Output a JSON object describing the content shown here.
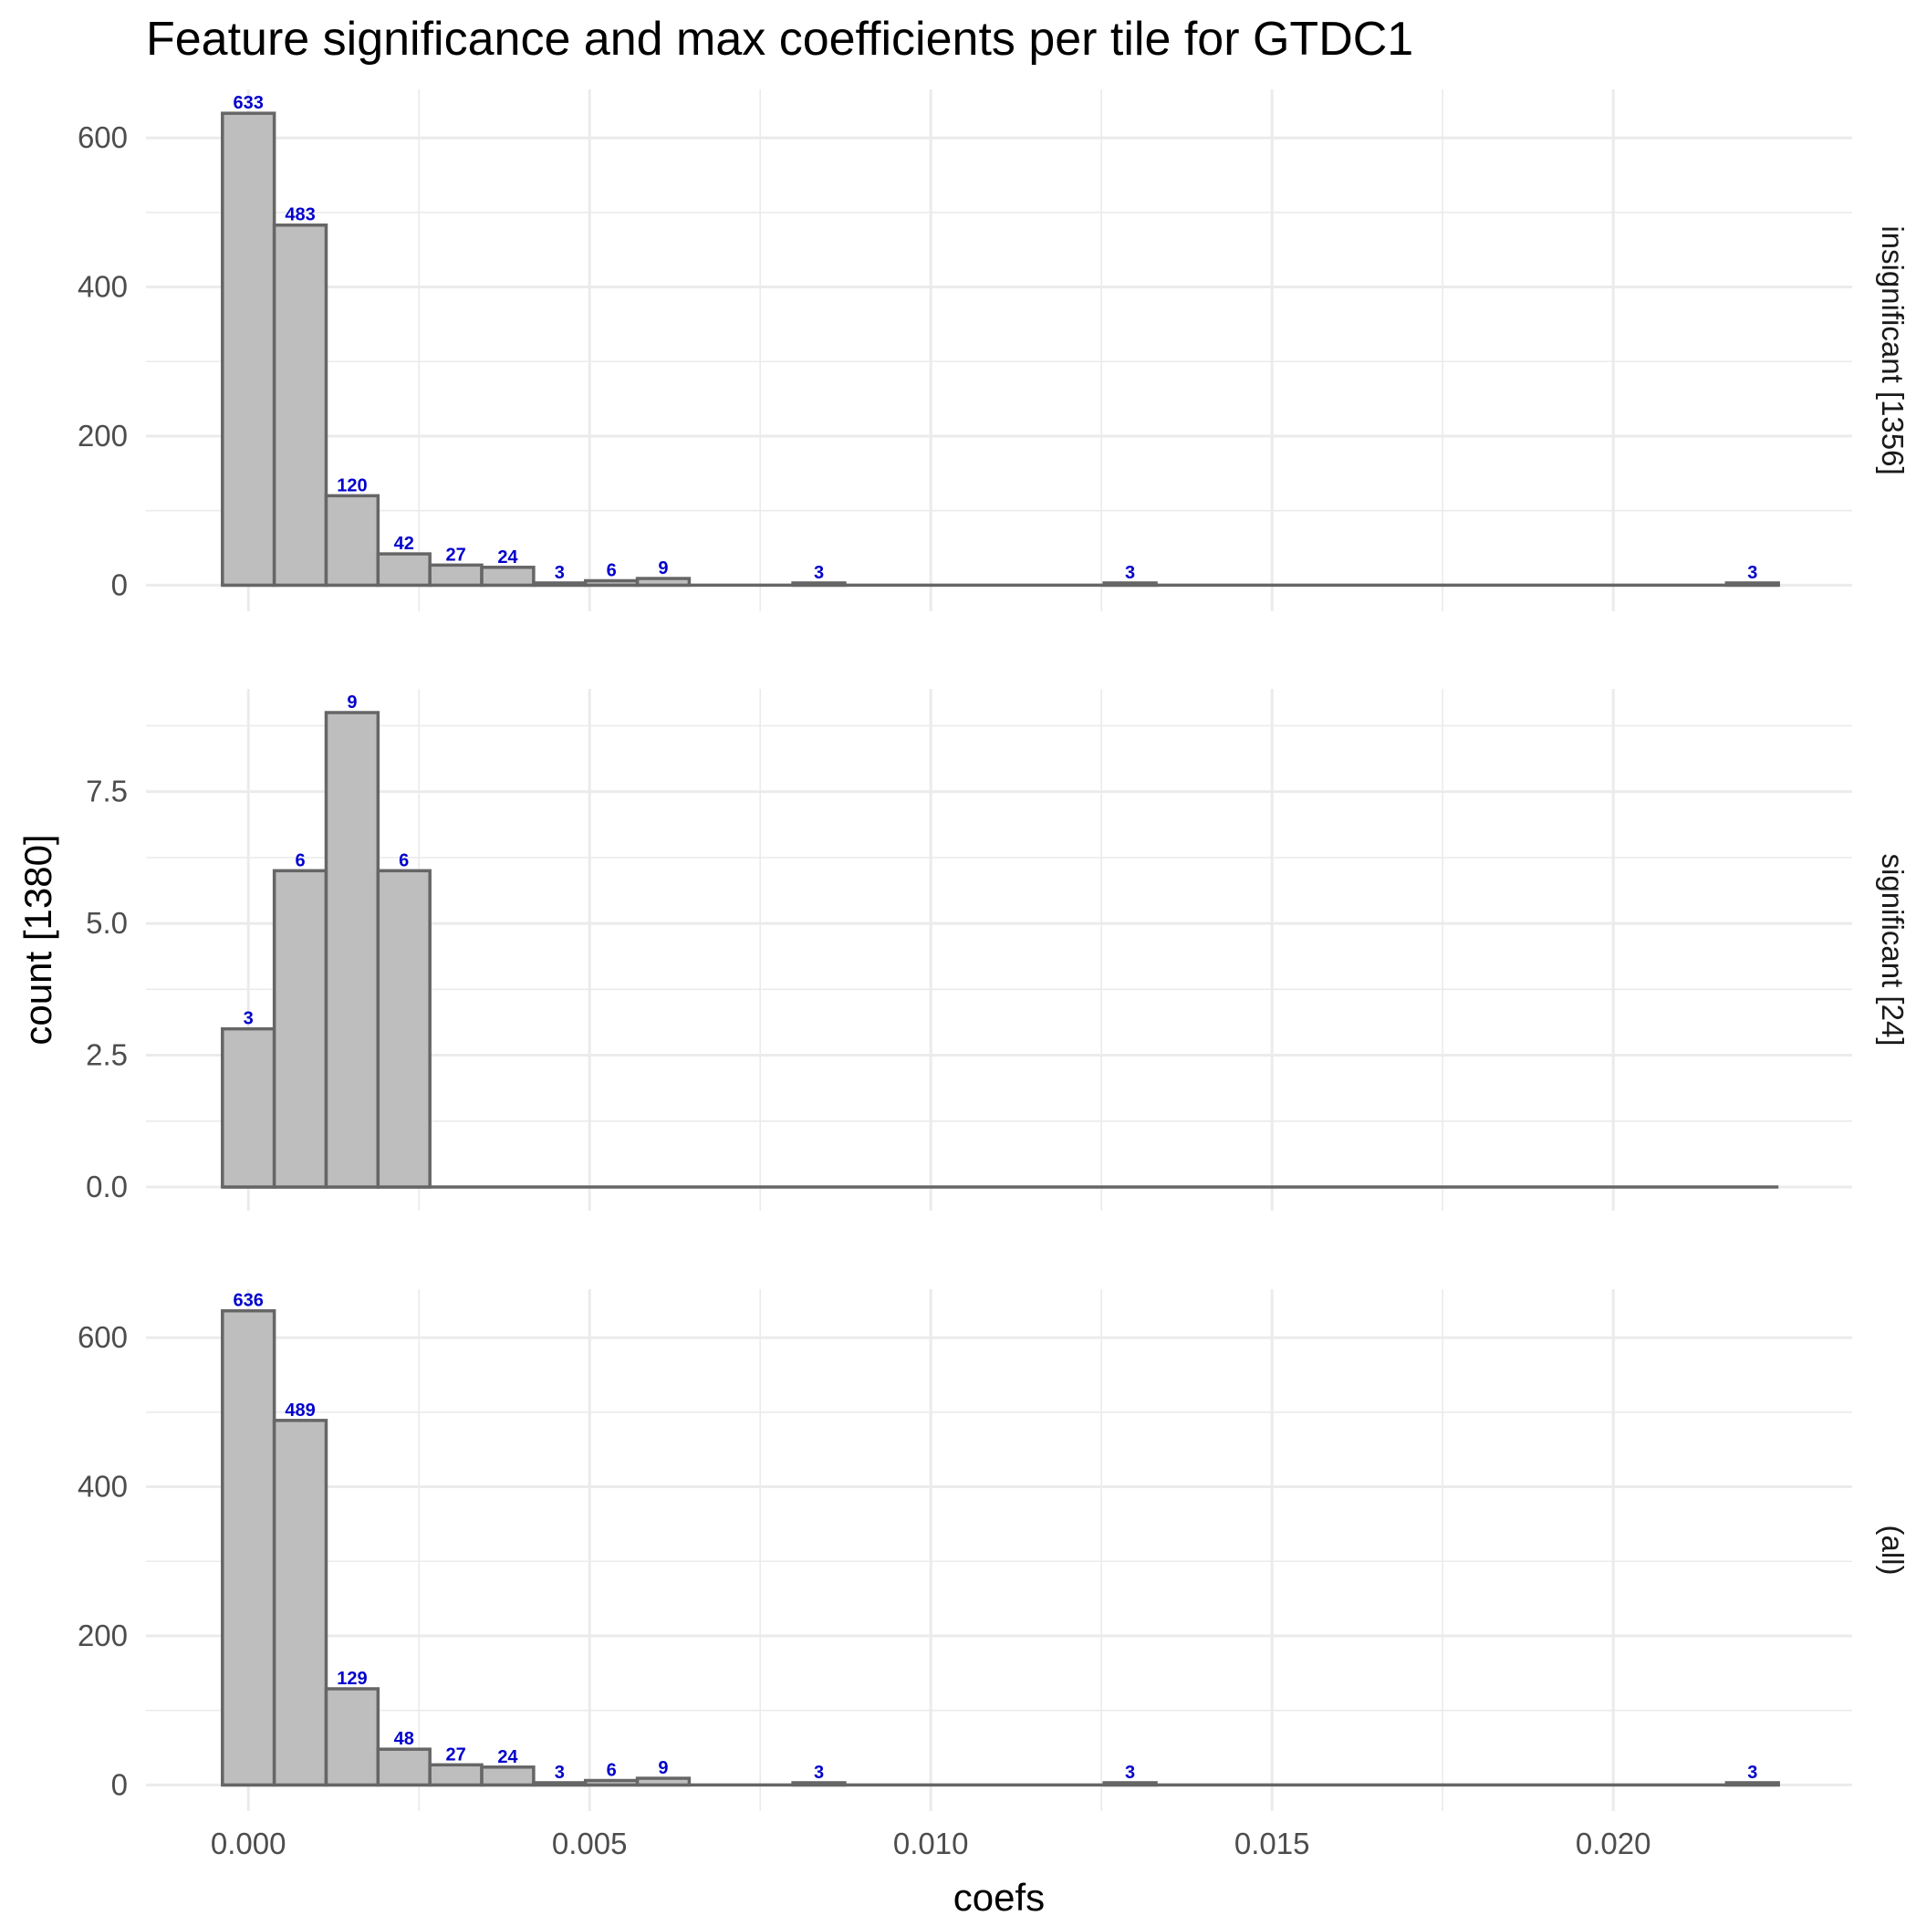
{
  "chart_data": {
    "type": "bar",
    "subtype": "histogram",
    "title": "Feature significance and max coefficients per tile for GTDC1",
    "xlabel": "coefs",
    "ylabel": "count [1380]",
    "xlim": [
      -0.0015,
      0.0235
    ],
    "x_ticks": [
      0.0,
      0.005,
      0.01,
      0.015,
      0.02
    ],
    "x_tick_labels": [
      "0.000",
      "0.005",
      "0.010",
      "0.015",
      "0.020"
    ],
    "bin_width": 0.00076,
    "bin_start": -0.00038,
    "bin_count": 30,
    "grid": true,
    "bar_fill": "#bebebe",
    "bar_outline": "#666666",
    "label_color": "#0000cc",
    "panels": [
      {
        "strip_label": "insignificant [1356]",
        "ylim": [
          -35,
          665
        ],
        "y_ticks": [
          0,
          200,
          400,
          600
        ],
        "y_tick_labels": [
          "0",
          "200",
          "400",
          "600"
        ],
        "y_minor_ticks": [
          100,
          300,
          500
        ],
        "bins": [
          {
            "index": 0,
            "count": 633,
            "label": "633"
          },
          {
            "index": 1,
            "count": 483,
            "label": "483"
          },
          {
            "index": 2,
            "count": 120,
            "label": "120"
          },
          {
            "index": 3,
            "count": 42,
            "label": "42"
          },
          {
            "index": 4,
            "count": 27,
            "label": "27"
          },
          {
            "index": 5,
            "count": 24,
            "label": "24"
          },
          {
            "index": 6,
            "count": 3,
            "label": "3"
          },
          {
            "index": 7,
            "count": 6,
            "label": "6"
          },
          {
            "index": 8,
            "count": 9,
            "label": "9"
          },
          {
            "index": 11,
            "count": 3,
            "label": "3"
          },
          {
            "index": 17,
            "count": 3,
            "label": "3"
          },
          {
            "index": 29,
            "count": 3,
            "label": "3"
          }
        ]
      },
      {
        "strip_label": "significant [24]",
        "ylim": [
          -0.45,
          9.45
        ],
        "y_ticks": [
          0.0,
          2.5,
          5.0,
          7.5
        ],
        "y_tick_labels": [
          "0.0",
          "2.5",
          "5.0",
          "7.5"
        ],
        "y_minor_ticks": [
          1.25,
          3.75,
          6.25,
          8.75
        ],
        "bins": [
          {
            "index": 0,
            "count": 3,
            "label": "3"
          },
          {
            "index": 1,
            "count": 6,
            "label": "6"
          },
          {
            "index": 2,
            "count": 9,
            "label": "9"
          },
          {
            "index": 3,
            "count": 6,
            "label": "6"
          }
        ]
      },
      {
        "strip_label": "(all)",
        "ylim": [
          -35,
          665
        ],
        "y_ticks": [
          0,
          200,
          400,
          600
        ],
        "y_tick_labels": [
          "0",
          "200",
          "400",
          "600"
        ],
        "y_minor_ticks": [
          100,
          300,
          500
        ],
        "bins": [
          {
            "index": 0,
            "count": 636,
            "label": "636"
          },
          {
            "index": 1,
            "count": 489,
            "label": "489"
          },
          {
            "index": 2,
            "count": 129,
            "label": "129"
          },
          {
            "index": 3,
            "count": 48,
            "label": "48"
          },
          {
            "index": 4,
            "count": 27,
            "label": "27"
          },
          {
            "index": 5,
            "count": 24,
            "label": "24"
          },
          {
            "index": 6,
            "count": 3,
            "label": "3"
          },
          {
            "index": 7,
            "count": 6,
            "label": "6"
          },
          {
            "index": 8,
            "count": 9,
            "label": "9"
          },
          {
            "index": 11,
            "count": 3,
            "label": "3"
          },
          {
            "index": 17,
            "count": 3,
            "label": "3"
          },
          {
            "index": 29,
            "count": 3,
            "label": "3"
          }
        ]
      }
    ]
  }
}
